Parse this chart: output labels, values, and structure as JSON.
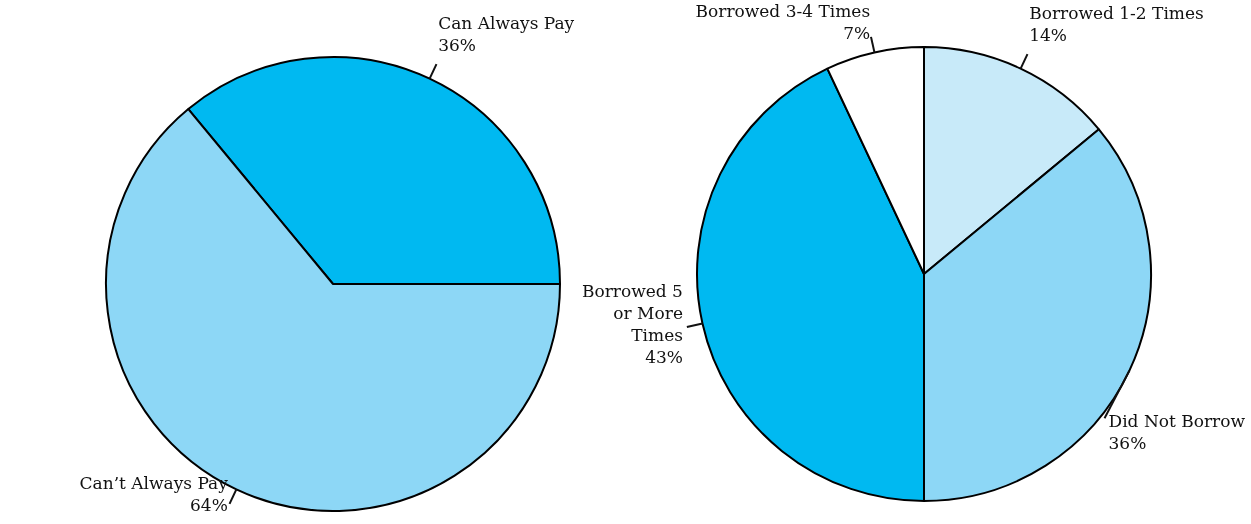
{
  "chart_data": [
    {
      "type": "pie",
      "categories": [
        "Can Always Pay",
        "Can’t Always Pay"
      ],
      "values": [
        36,
        64
      ],
      "value_labels": [
        "36%",
        "64%"
      ],
      "colors": [
        "#00b9f1",
        "#8dd7f6"
      ]
    },
    {
      "type": "pie",
      "categories": [
        "Borrowed 1-2 Times",
        "Did Not Borrow",
        "Borrowed 5 or More Times",
        "Borrowed 3-4 Times"
      ],
      "values": [
        14,
        36,
        43,
        7
      ],
      "value_labels": [
        "14%",
        "36%",
        "43%",
        "7%"
      ],
      "colors": [
        "#c8eaf9",
        "#8dd7f6",
        "#00b9f1",
        "#ffffff"
      ]
    }
  ]
}
